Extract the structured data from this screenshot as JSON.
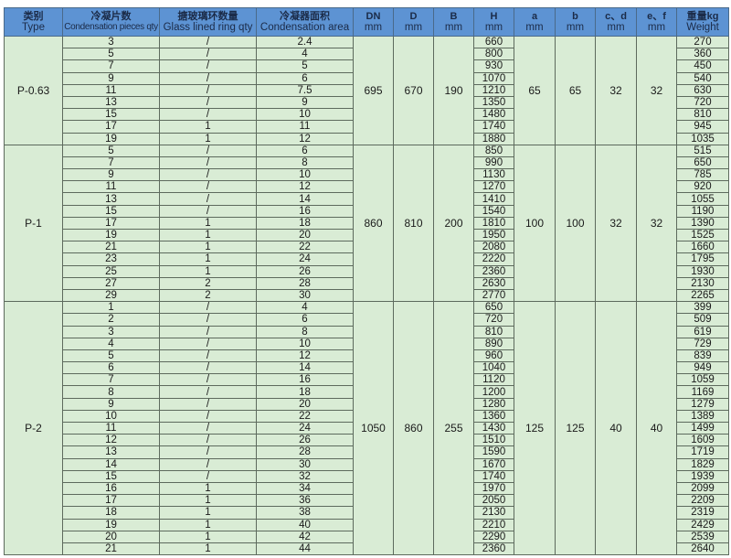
{
  "headers": [
    {
      "cn": "类别",
      "en": "Type"
    },
    {
      "cn": "冷凝片数",
      "en": "Condensation pieces qty"
    },
    {
      "cn": "搪玻璃环数量",
      "en": "Glass lined ring qty"
    },
    {
      "cn": "冷凝器面积",
      "en": "Condensation area"
    },
    {
      "cn": "DN",
      "en": "mm"
    },
    {
      "cn": "D",
      "en": "mm"
    },
    {
      "cn": "B",
      "en": "mm"
    },
    {
      "cn": "H",
      "en": "mm"
    },
    {
      "cn": "a",
      "en": "mm"
    },
    {
      "cn": "b",
      "en": "mm"
    },
    {
      "cn": "c、d",
      "en": "mm"
    },
    {
      "cn": "e、f",
      "en": "mm"
    },
    {
      "cn": "重量kg",
      "en": "Weight"
    }
  ],
  "groups": [
    {
      "type": "P-0.63",
      "DN": "695",
      "D": "670",
      "B": "190",
      "a": "65",
      "b": "65",
      "cd": "32",
      "ef": "32",
      "rows": [
        [
          "3",
          "/",
          "2.4",
          "660",
          "270"
        ],
        [
          "5",
          "/",
          "4",
          "800",
          "360"
        ],
        [
          "7",
          "/",
          "5",
          "930",
          "450"
        ],
        [
          "9",
          "/",
          "6",
          "1070",
          "540"
        ],
        [
          "11",
          "/",
          "7.5",
          "1210",
          "630"
        ],
        [
          "13",
          "/",
          "9",
          "1350",
          "720"
        ],
        [
          "15",
          "/",
          "10",
          "1480",
          "810"
        ],
        [
          "17",
          "1",
          "11",
          "1740",
          "945"
        ],
        [
          "19",
          "1",
          "12",
          "1880",
          "1035"
        ]
      ]
    },
    {
      "type": "P-1",
      "DN": "860",
      "D": "810",
      "B": "200",
      "a": "100",
      "b": "100",
      "cd": "32",
      "ef": "32",
      "rows": [
        [
          "5",
          "/",
          "6",
          "850",
          "515"
        ],
        [
          "7",
          "/",
          "8",
          "990",
          "650"
        ],
        [
          "9",
          "/",
          "10",
          "1130",
          "785"
        ],
        [
          "11",
          "/",
          "12",
          "1270",
          "920"
        ],
        [
          "13",
          "/",
          "14",
          "1410",
          "1055"
        ],
        [
          "15",
          "/",
          "16",
          "1540",
          "1190"
        ],
        [
          "17",
          "1",
          "18",
          "1810",
          "1390"
        ],
        [
          "19",
          "1",
          "20",
          "1950",
          "1525"
        ],
        [
          "21",
          "1",
          "22",
          "2080",
          "1660"
        ],
        [
          "23",
          "1",
          "24",
          "2220",
          "1795"
        ],
        [
          "25",
          "1",
          "26",
          "2360",
          "1930"
        ],
        [
          "27",
          "2",
          "28",
          "2630",
          "2130"
        ],
        [
          "29",
          "2",
          "30",
          "2770",
          "2265"
        ]
      ]
    },
    {
      "type": "P-2",
      "DN": "1050",
      "D": "860",
      "B": "255",
      "a": "125",
      "b": "125",
      "cd": "40",
      "ef": "40",
      "rows": [
        [
          "1",
          "/",
          "4",
          "650",
          "399"
        ],
        [
          "2",
          "/",
          "6",
          "720",
          "509"
        ],
        [
          "3",
          "/",
          "8",
          "810",
          "619"
        ],
        [
          "4",
          "/",
          "10",
          "890",
          "729"
        ],
        [
          "5",
          "/",
          "12",
          "960",
          "839"
        ],
        [
          "6",
          "/",
          "14",
          "1040",
          "949"
        ],
        [
          "7",
          "/",
          "16",
          "1120",
          "1059"
        ],
        [
          "8",
          "/",
          "18",
          "1200",
          "1169"
        ],
        [
          "9",
          "/",
          "20",
          "1280",
          "1279"
        ],
        [
          "10",
          "/",
          "22",
          "1360",
          "1389"
        ],
        [
          "11",
          "/",
          "24",
          "1430",
          "1499"
        ],
        [
          "12",
          "/",
          "26",
          "1510",
          "1609"
        ],
        [
          "13",
          "/",
          "28",
          "1590",
          "1719"
        ],
        [
          "14",
          "/",
          "30",
          "1670",
          "1829"
        ],
        [
          "15",
          "/",
          "32",
          "1740",
          "1939"
        ],
        [
          "16",
          "1",
          "34",
          "1970",
          "2099"
        ],
        [
          "17",
          "1",
          "36",
          "2050",
          "2209"
        ],
        [
          "18",
          "1",
          "38",
          "2130",
          "2319"
        ],
        [
          "19",
          "1",
          "40",
          "2210",
          "2429"
        ],
        [
          "20",
          "1",
          "42",
          "2290",
          "2539"
        ],
        [
          "21",
          "1",
          "44",
          "2360",
          "2640"
        ]
      ]
    }
  ],
  "colors": {
    "header_bg": "#5d93d3",
    "body_bg": "#d9ecd5"
  }
}
